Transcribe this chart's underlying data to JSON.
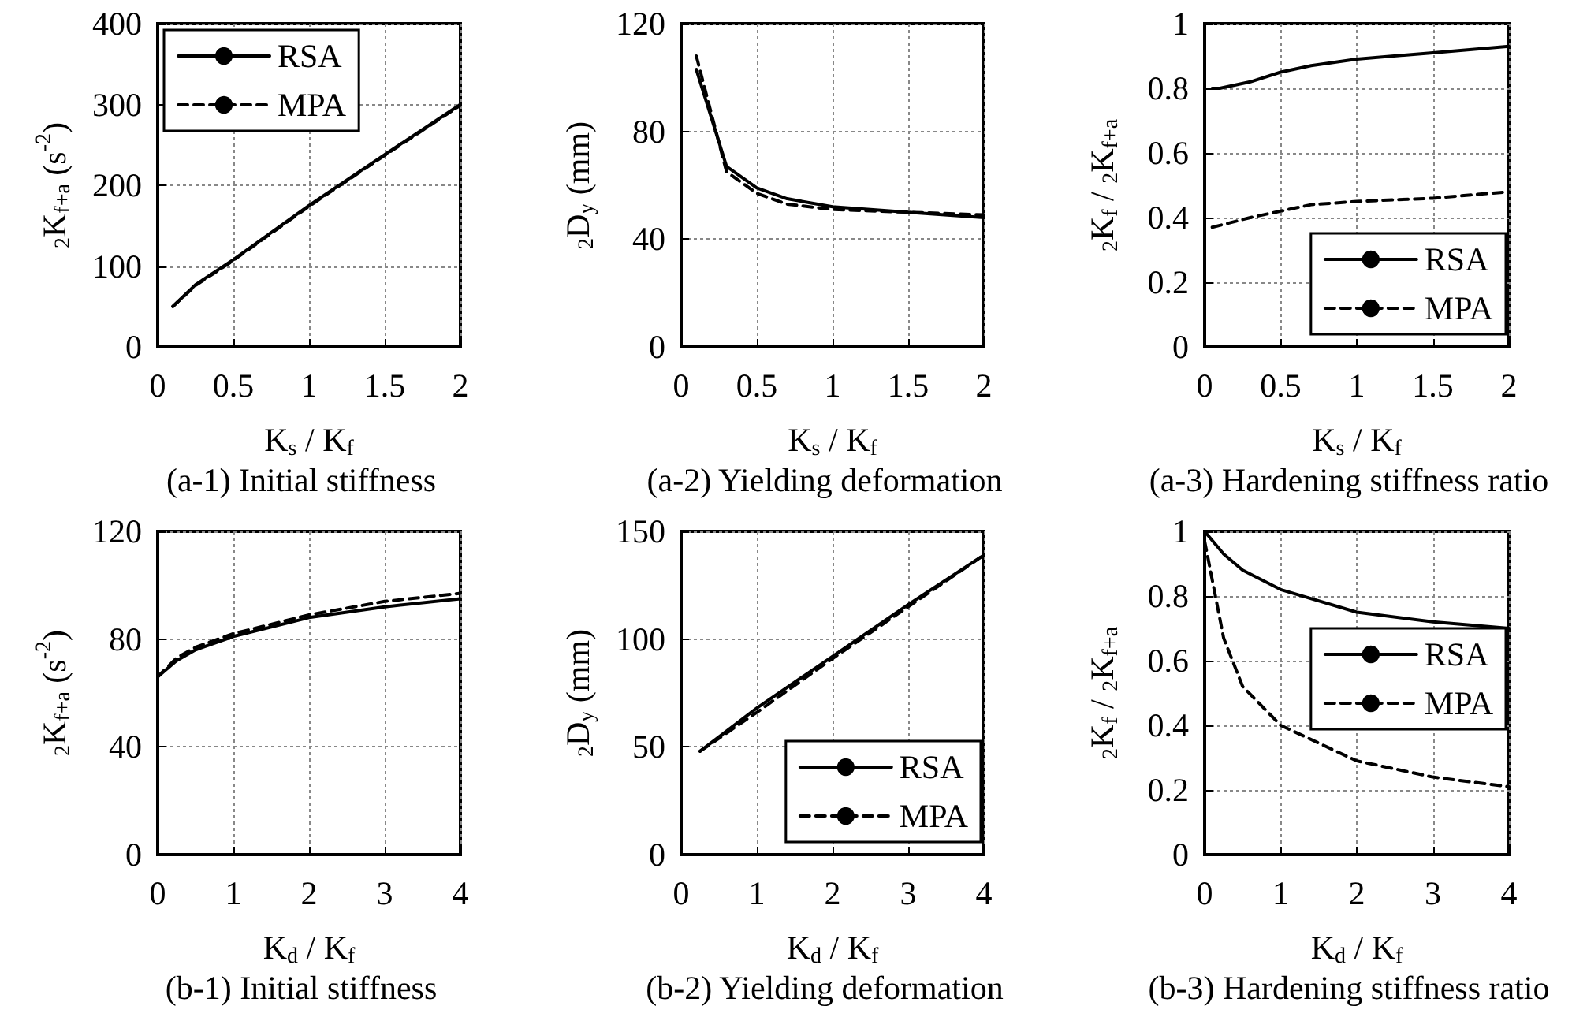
{
  "chart_data": [
    {
      "type": "line",
      "title": "(a-1) Initial stiffness",
      "xlabel": "K$_{s}$ / K$_{f}$",
      "ylabel": "$_{2}$K$_{f+a}$ (s$^{-2}$)",
      "xlim": [
        0,
        2
      ],
      "xticks": [
        0,
        0.5,
        1,
        1.5,
        2
      ],
      "ylim": [
        0,
        400
      ],
      "yticks": [
        0,
        100,
        200,
        300,
        400
      ],
      "grid": true,
      "legend": "top left",
      "marker": "none",
      "series": [
        {
          "name": "RSA",
          "color": "#000000",
          "line_style": "solid",
          "x": [
            0.1,
            0.25,
            0.5,
            1,
            1.5,
            2
          ],
          "values": [
            50,
            77,
            108,
            175,
            238,
            300
          ]
        },
        {
          "name": "MPA",
          "color": "#000000",
          "line_style": "dashed",
          "x": [
            0.1,
            0.25,
            0.5,
            1,
            1.5,
            2
          ],
          "values": [
            50,
            76,
            107,
            174,
            237,
            299
          ]
        }
      ]
    },
    {
      "type": "line",
      "title": "(a-2) Yielding deformation",
      "xlabel": "K$_{s}$ / K$_{f}$",
      "ylabel": "$_{2}$D$_{y}$ (mm)",
      "xlim": [
        0,
        2
      ],
      "xticks": [
        0,
        0.5,
        1,
        1.5,
        2
      ],
      "ylim": [
        0,
        120
      ],
      "yticks": [
        0,
        40,
        80,
        120
      ],
      "grid": true,
      "marker": "none",
      "series": [
        {
          "color": "#000000",
          "line_style": "solid",
          "x": [
            0.1,
            0.3,
            0.5,
            0.7,
            1,
            1.5,
            2
          ],
          "values": [
            103,
            67,
            59,
            55,
            52,
            50,
            48
          ]
        },
        {
          "color": "#000000",
          "line_style": "dashed",
          "x": [
            0.1,
            0.3,
            0.5,
            0.7,
            1,
            1.5,
            2
          ],
          "values": [
            108,
            65,
            57,
            53,
            51,
            50,
            49
          ]
        }
      ]
    },
    {
      "type": "line",
      "title": "(a-3) Hardening stiffness ratio",
      "xlabel": "K$_{s}$ / K$_{f}$",
      "ylabel": "$_{2}$K$_{f}$ / $_{2}$K$_{f+a}$",
      "xlim": [
        0,
        2
      ],
      "xticks": [
        0,
        0.5,
        1,
        1.5,
        2
      ],
      "ylim": [
        0,
        1
      ],
      "yticks": [
        0,
        0.2,
        0.4,
        0.6,
        0.8,
        1
      ],
      "grid": true,
      "legend": "bottom right",
      "marker": "none",
      "series": [
        {
          "name": "RSA",
          "color": "#000000",
          "line_style": "solid",
          "x": [
            0.05,
            0.1,
            0.3,
            0.5,
            0.7,
            1,
            1.5,
            2
          ],
          "values": [
            0.8,
            0.8,
            0.82,
            0.85,
            0.87,
            0.89,
            0.91,
            0.93
          ]
        },
        {
          "name": "MPA",
          "color": "#000000",
          "line_style": "dashed",
          "x": [
            0.05,
            0.3,
            0.5,
            0.7,
            1,
            1.5,
            2
          ],
          "values": [
            0.37,
            0.4,
            0.42,
            0.44,
            0.45,
            0.46,
            0.48
          ]
        }
      ]
    },
    {
      "type": "line",
      "title": "(b-1) Initial stiffness",
      "xlabel": "K$_{d}$ / K$_{f}$",
      "ylabel": "$_{2}$K$_{f+a}$ (s$^{-2}$)",
      "xlim": [
        0,
        4
      ],
      "xticks": [
        0,
        1,
        2,
        3,
        4
      ],
      "ylim": [
        0,
        120
      ],
      "yticks": [
        0,
        40,
        80,
        120
      ],
      "grid": true,
      "marker": "none",
      "series": [
        {
          "color": "#000000",
          "line_style": "solid",
          "x": [
            0,
            0.25,
            0.5,
            1,
            2,
            3,
            4
          ],
          "values": [
            66,
            72,
            76,
            81,
            88,
            92,
            95
          ]
        },
        {
          "color": "#000000",
          "line_style": "dashed",
          "x": [
            0,
            0.25,
            0.5,
            1,
            2,
            3,
            4
          ],
          "values": [
            66,
            73,
            77,
            82,
            89,
            94,
            97
          ]
        }
      ]
    },
    {
      "type": "line",
      "title": "(b-2) Yielding deformation",
      "xlabel": "K$_{d}$ / K$_{f}$",
      "ylabel": "$_{2}$D$_{y}$ (mm)",
      "xlim": [
        0,
        4
      ],
      "xticks": [
        0,
        1,
        2,
        3,
        4
      ],
      "ylim": [
        0,
        150
      ],
      "yticks": [
        0,
        50,
        100,
        150
      ],
      "grid": true,
      "legend": "bottom right",
      "marker": "none",
      "series": [
        {
          "name": "RSA",
          "color": "#000000",
          "line_style": "solid",
          "x": [
            0.25,
            1,
            2,
            3,
            4
          ],
          "values": [
            48,
            68,
            92,
            116,
            139
          ]
        },
        {
          "name": "MPA",
          "color": "#000000",
          "line_style": "dashed",
          "x": [
            0.25,
            1,
            2,
            3,
            4
          ],
          "values": [
            48,
            66,
            91,
            115,
            139
          ]
        }
      ]
    },
    {
      "type": "line",
      "title": "(b-3) Hardening stiffness ratio",
      "xlabel": "K$_{d}$ / K$_{f}$",
      "ylabel": "$_{2}$K$_{f}$ / $_{2}$K$_{f+a}$",
      "xlim": [
        0,
        4
      ],
      "xticks": [
        0,
        1,
        2,
        3,
        4
      ],
      "ylim": [
        0,
        1
      ],
      "yticks": [
        0,
        0.2,
        0.4,
        0.6,
        0.8,
        1
      ],
      "grid": true,
      "legend": "right",
      "marker": "none",
      "series": [
        {
          "name": "RSA",
          "color": "#000000",
          "line_style": "solid",
          "x": [
            0,
            0.25,
            0.5,
            1,
            2,
            3,
            4
          ],
          "values": [
            1,
            0.93,
            0.88,
            0.82,
            0.75,
            0.72,
            0.7
          ]
        },
        {
          "name": "MPA",
          "color": "#000000",
          "line_style": "dashed",
          "x": [
            0,
            0.1,
            0.25,
            0.5,
            1,
            2,
            3,
            4
          ],
          "values": [
            0.97,
            0.85,
            0.67,
            0.52,
            0.4,
            0.29,
            0.24,
            0.21
          ]
        }
      ]
    }
  ]
}
